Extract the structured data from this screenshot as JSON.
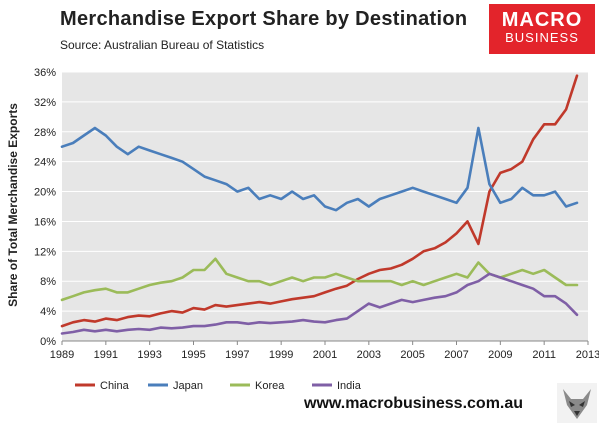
{
  "header": {
    "title": "Merchandise  Export Share by Destination",
    "source": "Source:  Australian Bureau of Statistics"
  },
  "logo": {
    "line1": "MACRO",
    "line2": "BUSINESS"
  },
  "footer": {
    "website": "www.macrobusiness.com.au"
  },
  "colors": {
    "china": "#c0392b",
    "japan": "#4a7ebb",
    "korea": "#9bbb59",
    "india": "#7f5fa6",
    "plot_bg": "#e6e6e6",
    "brand": "#e3242b"
  },
  "chart_data": {
    "type": "line",
    "title": "Merchandise  Export Share by Destination",
    "ylabel": "Share of Total Merchandise Exports",
    "xlabel": "",
    "xlim": [
      1989,
      2013
    ],
    "ylim": [
      0,
      36
    ],
    "y_ticks": [
      0,
      4,
      8,
      12,
      16,
      20,
      24,
      28,
      32,
      36
    ],
    "y_tick_labels": [
      "0%",
      "4%",
      "8%",
      "12%",
      "16%",
      "20%",
      "24%",
      "28%",
      "32%",
      "36%"
    ],
    "x_ticks": [
      1989,
      1991,
      1993,
      1995,
      1997,
      1999,
      2001,
      2003,
      2005,
      2007,
      2009,
      2011,
      2013
    ],
    "x_tick_labels": [
      "1989",
      "1991",
      "1993",
      "1995",
      "1997",
      "1999",
      "2001",
      "2003",
      "2005",
      "2007",
      "2009",
      "2011",
      "2013"
    ],
    "grid": "horizontal",
    "legend": "bottom-left",
    "x": [
      1989,
      1989.5,
      1990,
      1990.5,
      1991,
      1991.5,
      1992,
      1992.5,
      1993,
      1993.5,
      1994,
      1994.5,
      1995,
      1995.5,
      1996,
      1996.5,
      1997,
      1997.5,
      1998,
      1998.5,
      1999,
      1999.5,
      2000,
      2000.5,
      2001,
      2001.5,
      2002,
      2002.5,
      2003,
      2003.5,
      2004,
      2004.5,
      2005,
      2005.5,
      2006,
      2006.5,
      2007,
      2007.5,
      2008,
      2008.5,
      2009,
      2009.5,
      2010,
      2010.5,
      2011,
      2011.5,
      2012,
      2012.5
    ],
    "series": [
      {
        "name": "China",
        "color": "#c0392b",
        "values": [
          2.0,
          2.5,
          2.8,
          2.6,
          3.0,
          2.8,
          3.2,
          3.4,
          3.3,
          3.7,
          4.0,
          3.8,
          4.4,
          4.2,
          4.8,
          4.6,
          4.8,
          5.0,
          5.2,
          5.0,
          5.3,
          5.6,
          5.8,
          6.0,
          6.5,
          7.0,
          7.4,
          8.3,
          9.0,
          9.5,
          9.7,
          10.2,
          11.0,
          12.0,
          12.4,
          13.2,
          14.4,
          16.0,
          13.0,
          20.0,
          22.5,
          23.0,
          24.0,
          27.0,
          29.0,
          29.0,
          31.0,
          35.5
        ]
      },
      {
        "name": "Japan",
        "color": "#4a7ebb",
        "values": [
          26.0,
          26.5,
          27.5,
          28.5,
          27.5,
          26.0,
          25.0,
          26.0,
          25.5,
          25.0,
          24.5,
          24.0,
          23.0,
          22.0,
          21.5,
          21.0,
          20.0,
          20.5,
          19.0,
          19.5,
          19.0,
          20.0,
          19.0,
          19.5,
          18.0,
          17.5,
          18.5,
          19.0,
          18.0,
          19.0,
          19.5,
          20.0,
          20.5,
          20.0,
          19.5,
          19.0,
          18.5,
          20.5,
          28.5,
          21.0,
          18.5,
          19.0,
          20.5,
          19.5,
          19.5,
          20.0,
          18.0,
          18.5
        ]
      },
      {
        "name": "Korea",
        "color": "#9bbb59",
        "values": [
          5.5,
          6.0,
          6.5,
          6.8,
          7.0,
          6.5,
          6.5,
          7.0,
          7.5,
          7.8,
          8.0,
          8.5,
          9.5,
          9.5,
          11.0,
          9.0,
          8.5,
          8.0,
          8.0,
          7.5,
          8.0,
          8.5,
          8.0,
          8.5,
          8.5,
          9.0,
          8.5,
          8.0,
          8.0,
          8.0,
          8.0,
          7.5,
          8.0,
          7.5,
          8.0,
          8.5,
          9.0,
          8.5,
          10.5,
          9.0,
          8.5,
          9.0,
          9.5,
          9.0,
          9.5,
          8.5,
          7.5,
          7.5
        ]
      },
      {
        "name": "India",
        "color": "#7f5fa6",
        "values": [
          1.0,
          1.2,
          1.5,
          1.3,
          1.5,
          1.3,
          1.5,
          1.6,
          1.5,
          1.8,
          1.7,
          1.8,
          2.0,
          2.0,
          2.2,
          2.5,
          2.5,
          2.3,
          2.5,
          2.4,
          2.5,
          2.6,
          2.8,
          2.6,
          2.5,
          2.8,
          3.0,
          4.0,
          5.0,
          4.5,
          5.0,
          5.5,
          5.2,
          5.5,
          5.8,
          6.0,
          6.5,
          7.5,
          8.0,
          9.0,
          8.5,
          8.0,
          7.5,
          7.0,
          6.0,
          6.0,
          5.0,
          3.5
        ]
      }
    ]
  }
}
